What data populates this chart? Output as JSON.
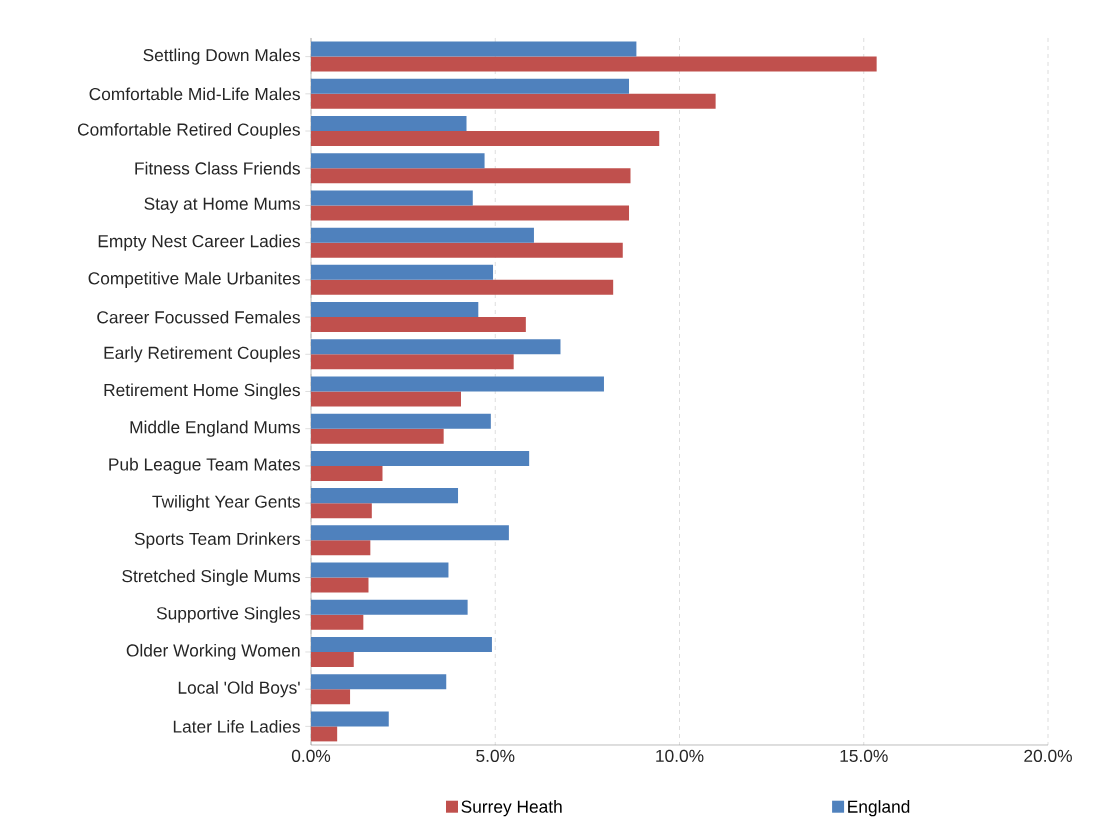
{
  "chart_data": {
    "type": "bar",
    "orientation": "horizontal",
    "categories": [
      "Settling Down Males",
      "Comfortable Mid-Life Males",
      "Comfortable Retired Couples",
      "Fitness Class Friends",
      "Stay at Home Mums",
      "Empty Nest Career Ladies",
      "Competitive Male Urbanites",
      "Career Focussed Females",
      "Early Retirement Couples",
      "Retirement Home Singles",
      "Middle England Mums",
      "Pub League Team Mates",
      "Twilight Year Gents",
      "Sports Team Drinkers",
      "Stretched Single Mums",
      "Supportive Singles",
      "Older Working Women",
      "Local 'Old Boys'",
      "Later Life Ladies"
    ],
    "series": [
      {
        "name": "Surrey Heath",
        "color": "#c0504d",
        "values": [
          15.35,
          10.98,
          9.45,
          8.67,
          8.63,
          8.46,
          8.2,
          5.83,
          5.5,
          4.07,
          3.6,
          1.94,
          1.65,
          1.61,
          1.56,
          1.42,
          1.16,
          1.06,
          0.71
        ]
      },
      {
        "name": "England",
        "color": "#4f81bd",
        "values": [
          8.83,
          8.63,
          4.22,
          4.71,
          4.39,
          6.05,
          4.94,
          4.54,
          6.77,
          7.95,
          4.88,
          5.92,
          3.99,
          5.37,
          3.73,
          4.25,
          4.91,
          3.67,
          2.11
        ]
      }
    ],
    "xlim": [
      0,
      20
    ],
    "xticks": [
      {
        "value": 0,
        "label": "0.0%"
      },
      {
        "value": 5,
        "label": "5.0%"
      },
      {
        "value": 10,
        "label": "10.0%"
      },
      {
        "value": 15,
        "label": "15.0%"
      },
      {
        "value": 20,
        "label": "20.0%"
      }
    ],
    "grid": "x",
    "legend": "bottom"
  }
}
